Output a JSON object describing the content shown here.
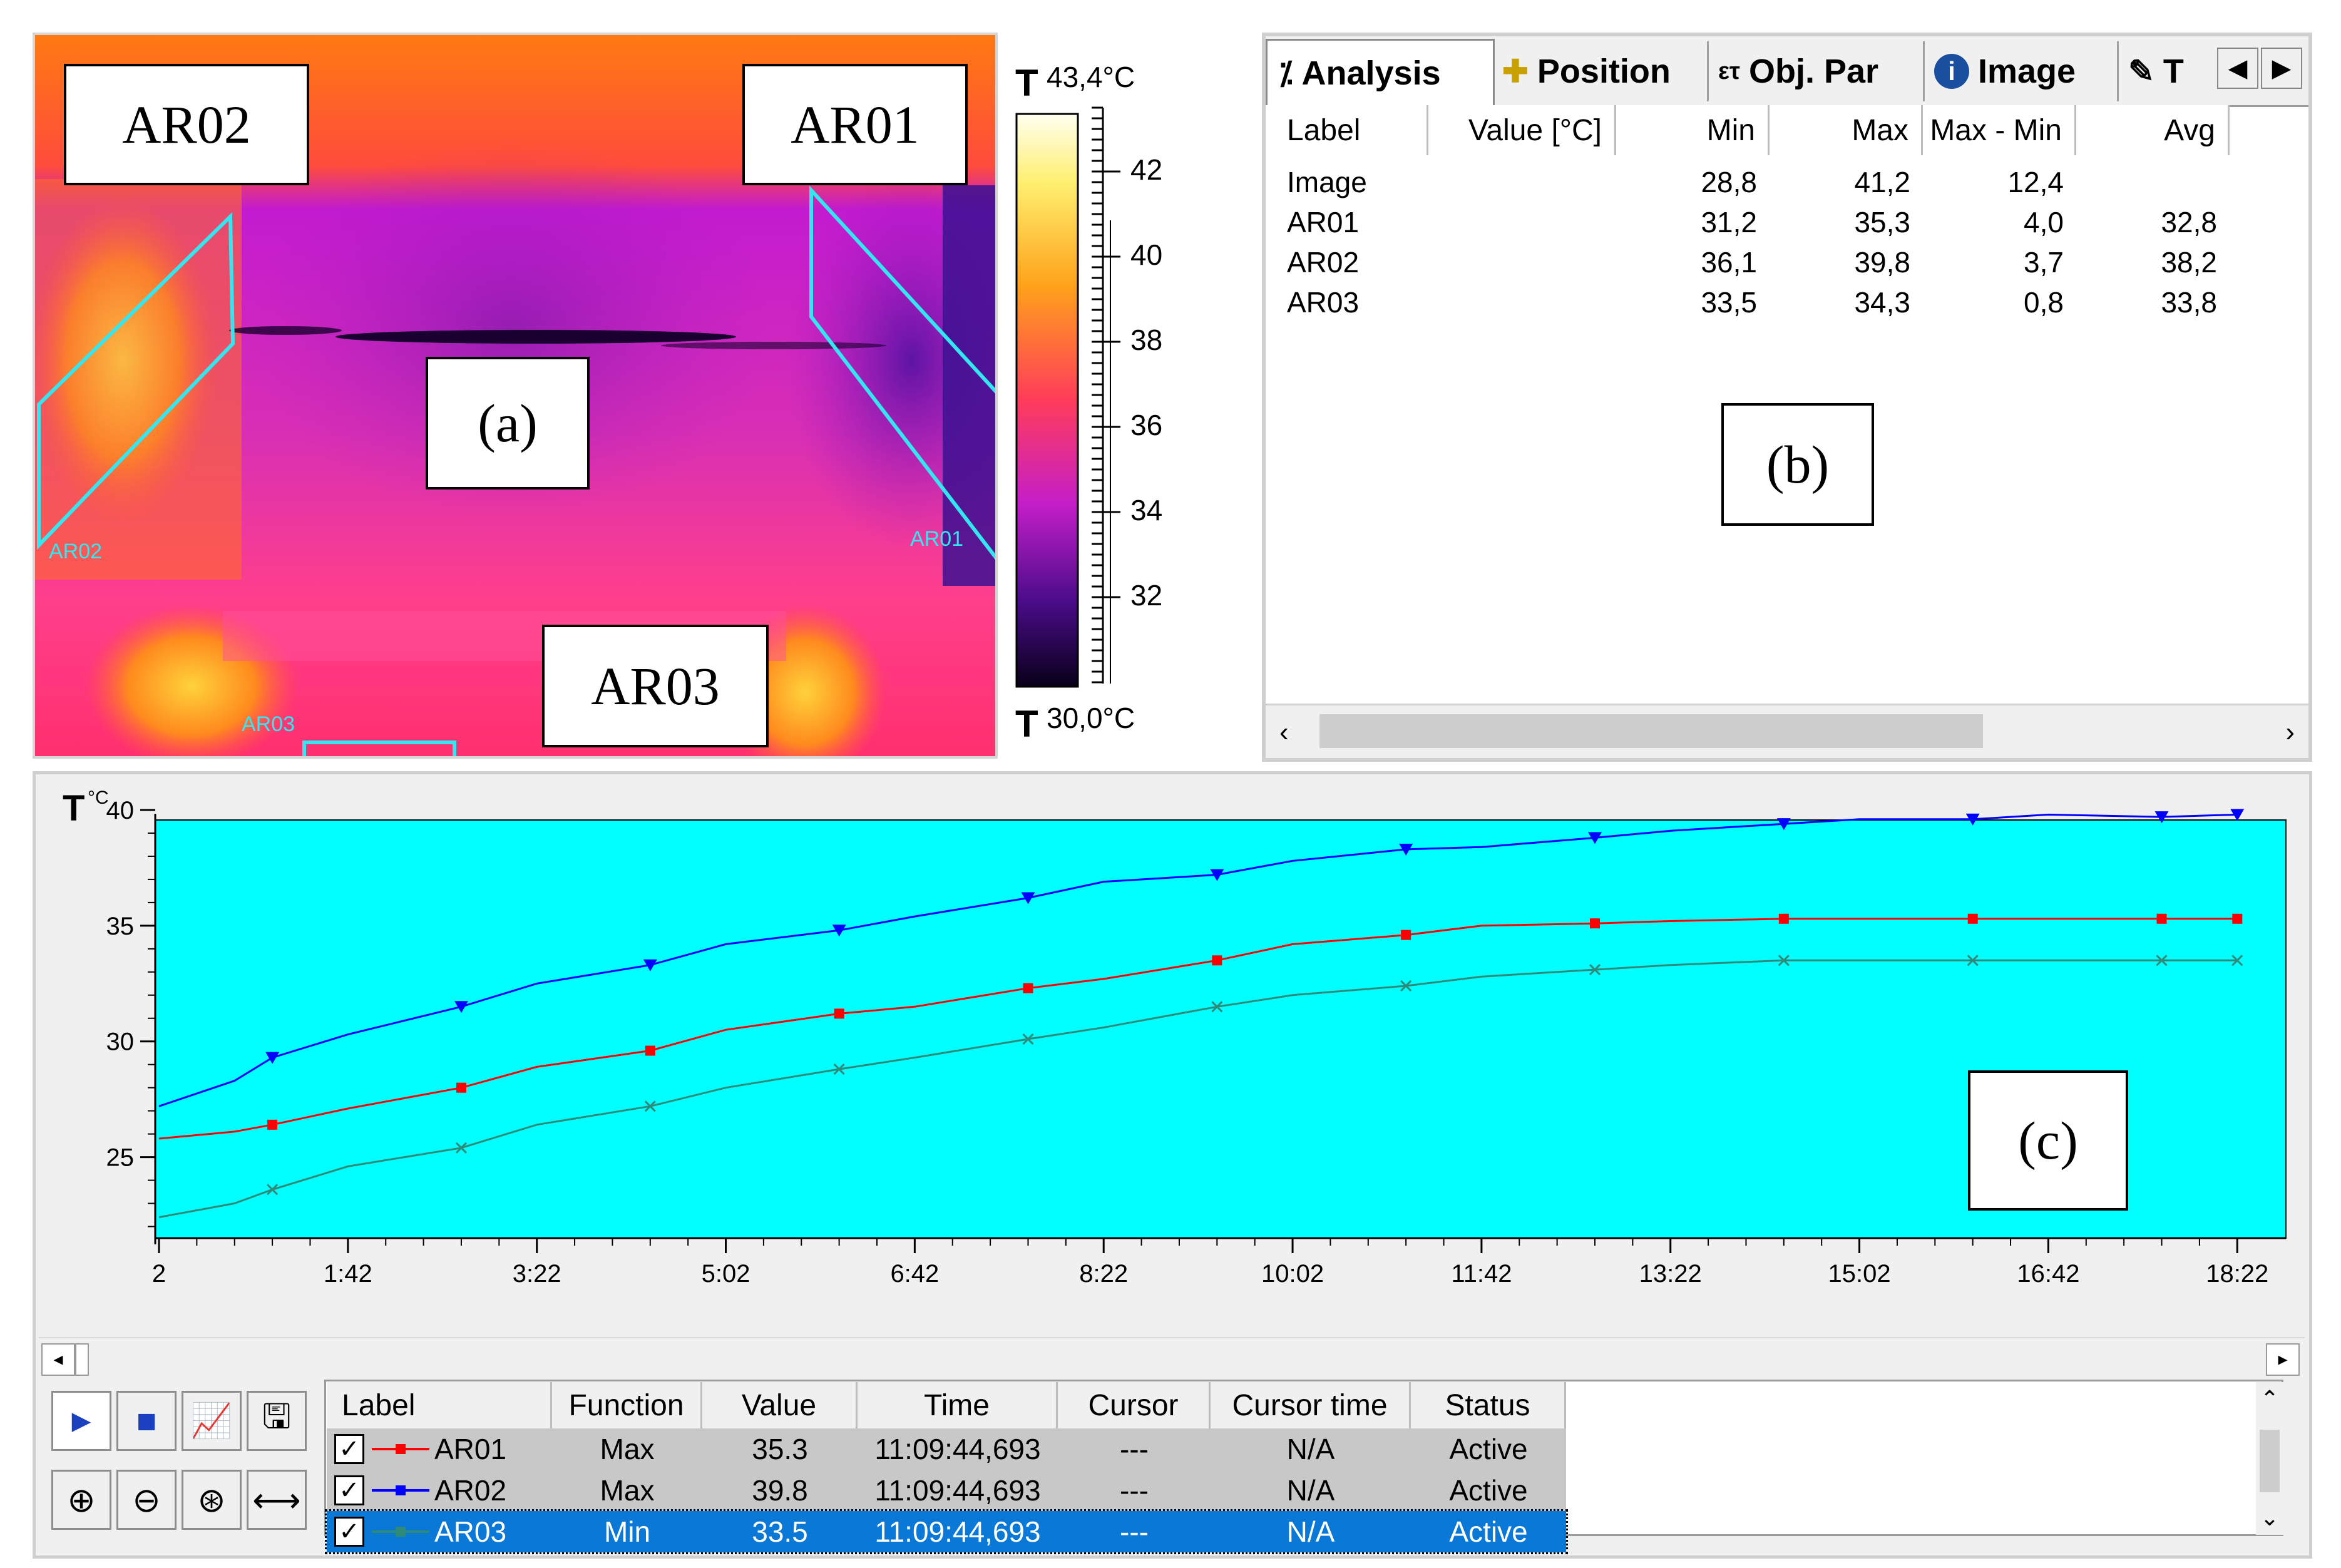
{
  "thermal": {
    "labels": {
      "ar02": "AR02",
      "ar01": "AR01",
      "ar03": "AR03",
      "panel": "(a)"
    },
    "roi_labels": {
      "ar02": "AR02",
      "ar01": "AR01",
      "ar03": "AR03"
    },
    "colors": {
      "roi": "#34e6f0"
    }
  },
  "colorbar": {
    "t_symbol": "T",
    "max_label": "43,4°C",
    "min_label": "30,0°C",
    "ticks": [
      "42",
      "40",
      "38",
      "36",
      "34",
      "32"
    ]
  },
  "analysis": {
    "tabs": [
      {
        "icon": "analysis-icon",
        "label": "Analysis"
      },
      {
        "icon": "position-icon",
        "label": "Position"
      },
      {
        "icon": "object-parameters-icon",
        "label": "Obj. Par"
      },
      {
        "icon": "info-icon",
        "label": "Image"
      },
      {
        "icon": "text-icon",
        "label": "T"
      }
    ],
    "columns": [
      "Label",
      "Value [°C]",
      "Min",
      "Max",
      "Max - Min",
      "Avg"
    ],
    "rows": [
      {
        "label": "Image",
        "value": "",
        "min": "28,8",
        "max": "41,2",
        "range": "12,4",
        "avg": ""
      },
      {
        "label": "AR01",
        "value": "",
        "min": "31,2",
        "max": "35,3",
        "range": "4,0",
        "avg": "32,8"
      },
      {
        "label": "AR02",
        "value": "",
        "min": "36,1",
        "max": "39,8",
        "range": "3,7",
        "avg": "38,2"
      },
      {
        "label": "AR03",
        "value": "",
        "min": "33,5",
        "max": "34,3",
        "range": "0,8",
        "avg": "33,8"
      }
    ],
    "panel_label": "(b)"
  },
  "graph": {
    "panel_label": "(c)",
    "y_symbol": "T",
    "y_unit": "°C",
    "legend_columns": [
      "Label",
      "Function",
      "Value",
      "Time",
      "Cursor",
      "Cursor time",
      "Status"
    ],
    "legend_rows": [
      {
        "label": "AR01",
        "function": "Max",
        "value": "35.3",
        "time": "11:09:44,693",
        "cursor": "---",
        "cursor_time": "N/A",
        "status": "Active",
        "color": "#ff0000"
      },
      {
        "label": "AR02",
        "function": "Max",
        "value": "39.8",
        "time": "11:09:44,693",
        "cursor": "---",
        "cursor_time": "N/A",
        "status": "Active",
        "color": "#0000ff"
      },
      {
        "label": "AR03",
        "function": "Min",
        "value": "33.5",
        "time": "11:09:44,693",
        "cursor": "---",
        "cursor_time": "N/A",
        "status": "Active",
        "color": "#2e8b7a"
      }
    ],
    "chart_bg": "#00ffff"
  },
  "chart_data": {
    "type": "line",
    "xlabel": "",
    "ylabel": "T °C",
    "x_tick_labels": [
      "2",
      "1:42",
      "3:22",
      "5:02",
      "6:42",
      "8:22",
      "10:02",
      "11:42",
      "13:22",
      "15:02",
      "16:42",
      "18:22"
    ],
    "y_ticks": [
      40,
      35,
      30,
      25
    ],
    "ylim": [
      21.5,
      40
    ],
    "xlim": [
      2,
      1102
    ],
    "x_unit": "seconds",
    "series": [
      {
        "name": "AR02",
        "color": "#0000ff",
        "marker": "triangle-down",
        "x": [
          2,
          42,
          62,
          102,
          162,
          202,
          262,
          302,
          362,
          402,
          462,
          502,
          562,
          602,
          662,
          702,
          762,
          802,
          862,
          902,
          962,
          1002,
          1062,
          1102
        ],
        "y": [
          27.2,
          28.3,
          29.3,
          30.3,
          31.5,
          32.5,
          33.3,
          34.2,
          34.8,
          35.4,
          36.2,
          36.9,
          37.2,
          37.8,
          38.3,
          38.4,
          38.8,
          39.1,
          39.4,
          39.6,
          39.6,
          39.8,
          39.7,
          39.8
        ]
      },
      {
        "name": "AR01",
        "color": "#ff0000",
        "marker": "square",
        "x": [
          2,
          42,
          62,
          102,
          162,
          202,
          262,
          302,
          362,
          402,
          462,
          502,
          562,
          602,
          662,
          702,
          762,
          802,
          862,
          902,
          962,
          1002,
          1062,
          1102
        ],
        "y": [
          25.8,
          26.1,
          26.4,
          27.1,
          28.0,
          28.9,
          29.6,
          30.5,
          31.2,
          31.5,
          32.3,
          32.7,
          33.5,
          34.2,
          34.6,
          35.0,
          35.1,
          35.2,
          35.3,
          35.3,
          35.3,
          35.3,
          35.3,
          35.3
        ]
      },
      {
        "name": "AR03",
        "color": "#2e8b7a",
        "marker": "x",
        "x": [
          2,
          42,
          62,
          102,
          162,
          202,
          262,
          302,
          362,
          402,
          462,
          502,
          562,
          602,
          662,
          702,
          762,
          802,
          862,
          902,
          962,
          1002,
          1062,
          1102
        ],
        "y": [
          22.4,
          23.0,
          23.6,
          24.6,
          25.4,
          26.4,
          27.2,
          28.0,
          28.8,
          29.3,
          30.1,
          30.6,
          31.5,
          32.0,
          32.4,
          32.8,
          33.1,
          33.3,
          33.5,
          33.5,
          33.5,
          33.5,
          33.5,
          33.5
        ]
      }
    ]
  }
}
